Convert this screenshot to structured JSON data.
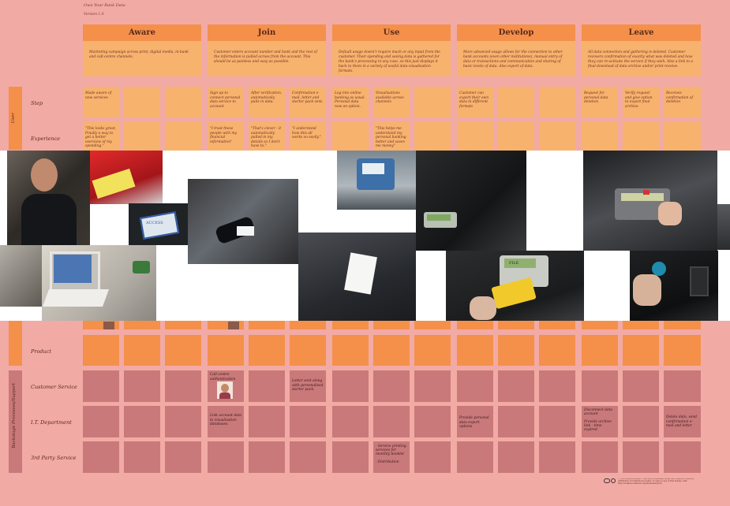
{
  "header": {
    "subtitle": "Own Your Bank Data",
    "version": "Version 1.0"
  },
  "phases": [
    {
      "title": "Aware",
      "desc": "Marketing campaign across print, digital media, in-bank and call-centre channels."
    },
    {
      "title": "Join",
      "desc": "Customer enters account number and bank and the rest of the information is pulled across from the account. This should be as painless and easy as possible."
    },
    {
      "title": "Use",
      "desc": "Default usage doesn't require much or any input from the customer. Their spending and saving data is gathered for the bank's processing in any case, so this just displays it back to them in a variety of useful data-visualisation formats."
    },
    {
      "title": "Develop",
      "desc": "More advanced usage allows for the connection to other bank accounts (even other institutions), manual entry of data or transactions and communication and sharing of basic levels of data. Also export of data."
    },
    {
      "title": "Leave",
      "desc": "All data connection and gathering is deleted. Customer recovers confirmation of exactly what was deleted and how they can re-activate the service if they wish. Also a link to a final download of data archive and/or print receive."
    }
  ],
  "side_labels": {
    "user": "User",
    "backstage": "Backstage Processes/Support"
  },
  "rows": {
    "step": "Step",
    "experience": "Experience",
    "product": "Product",
    "customer_service": "Customer Service",
    "it": "I.T. Department",
    "third_party": "3rd Party Service"
  },
  "cells": {
    "step_aware": "Made aware of new services",
    "step_join1": "Sign up to connect personal data service to account",
    "step_join2": "After verification, automatically pulls in data.",
    "step_join3": "Confirmation e-mail, letter and starter pack sent.",
    "step_use1": "Log-into online banking as usual. Personal data now an option.",
    "step_use2": "Visualisations available across channels",
    "step_dev1": "Customer can export their own data in different formats",
    "step_leave1": "Request for personal data deletion",
    "step_leave2": "Verify request and give option to export final archive.",
    "step_leave3": "Receives confirmation of deletion",
    "exp_aware": "\"This looks great. Finally a way to get a better overview of my spending.\"",
    "exp_join1": "\"I trust these people with my financial information\"",
    "exp_join2": "\"That's clever - it automatically pulled in my details so I don't have to.\"",
    "exp_join3": "\"I understand how this all works so easily.\"",
    "exp_use1": "\"This helps me understand my personal banking better and saves me money\"",
    "cs_join1": "Call-centre authentication",
    "cs_join3": "Letter sent along with personalised starter pack.",
    "it_join1": "Link account data to visualisation databases.",
    "it_dev1": "Provide personal data export options",
    "it_leave1": "Disconnect data account\n\nProvide archive link - time expired",
    "it_leave3": "Delete data, send confirmation e-mail and letter",
    "tp_use1": "- Service printing services for monthly booklet\n\n- Distribution"
  },
  "photos": {
    "card_text": "ACCESS",
    "lcd_text": "FILE"
  },
  "footer": "© 2013 Simon Hudson - This work is licensed under the Creative Commons Attribution 3.0 Unported License. To view a copy of this license, visit http://creativecommons.org/licenses/by/3.0/"
}
